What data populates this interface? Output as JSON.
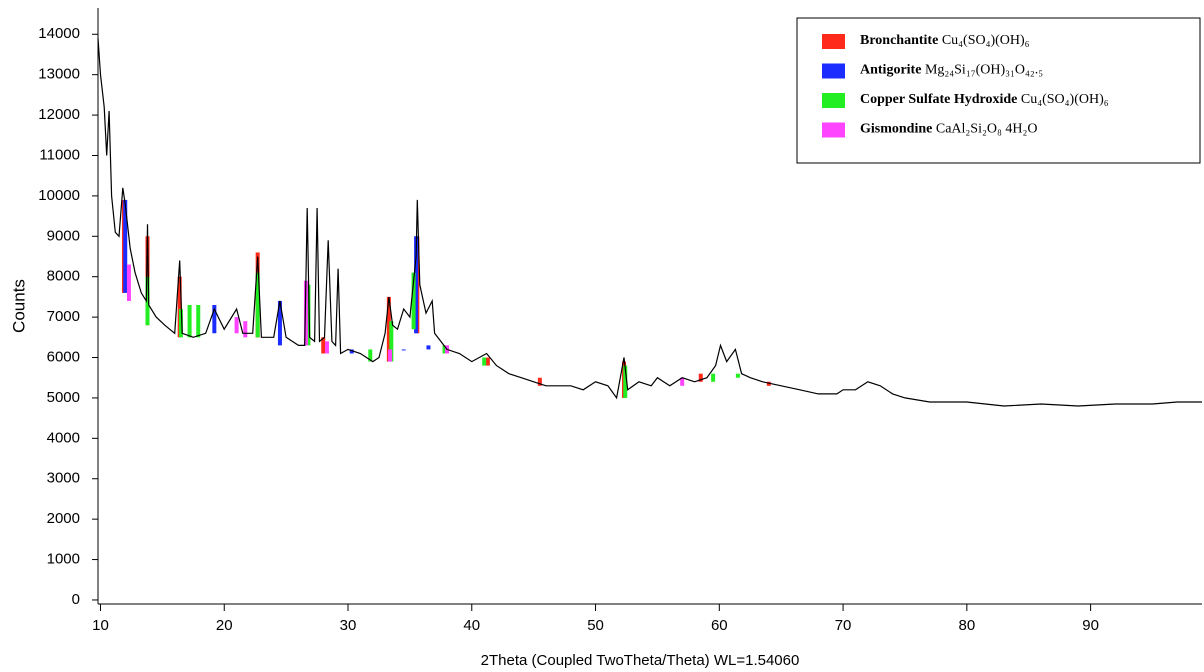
{
  "chart_data": {
    "type": "line",
    "x_label": "2Theta (Coupled TwoTheta/Theta) WL=1.54060",
    "y_label": "Counts",
    "xlim": [
      9.8,
      99
    ],
    "ylim": [
      -100,
      14650
    ],
    "xticks": [
      10,
      20,
      30,
      40,
      50,
      60,
      70,
      80,
      90
    ],
    "yticks": [
      0,
      1000,
      2000,
      3000,
      4000,
      5000,
      6000,
      7000,
      8000,
      9000,
      10000,
      11000,
      12000,
      13000,
      14000
    ],
    "color": "#000000",
    "x": [
      9.8,
      10.0,
      10.3,
      10.5,
      10.7,
      10.9,
      11.2,
      11.5,
      11.8,
      12.0,
      12.4,
      12.8,
      13.3,
      13.7,
      13.8,
      13.9,
      14.5,
      15.2,
      16.0,
      16.4,
      16.6,
      17.5,
      18.5,
      19.2,
      20.0,
      21.0,
      21.5,
      22.3,
      22.7,
      23.0,
      24.0,
      24.5,
      25.0,
      26.0,
      26.5,
      26.7,
      26.9,
      27.3,
      27.5,
      27.7,
      28.1,
      28.4,
      28.7,
      29.0,
      29.2,
      29.4,
      30.0,
      31.0,
      32.0,
      32.5,
      33.0,
      33.3,
      33.6,
      34.0,
      34.5,
      35.0,
      35.5,
      35.6,
      35.8,
      36.3,
      36.8,
      37.0,
      38.0,
      39.0,
      40.0,
      41.2,
      42.0,
      43.0,
      44.0,
      45.0,
      46.0,
      47.0,
      48.0,
      49.0,
      50.0,
      51.0,
      51.7,
      52.3,
      52.6,
      53.5,
      54.5,
      55.0,
      56.0,
      57.0,
      58.0,
      59.0,
      59.7,
      60.1,
      60.6,
      61.3,
      61.8,
      62.5,
      63.5,
      65.0,
      66.5,
      68.0,
      69.5,
      70.0,
      71.0,
      72.0,
      73.0,
      74.0,
      75.0,
      77.0,
      80.0,
      83.0,
      86.0,
      89.0,
      92.0,
      95.0,
      97.0,
      99.0
    ],
    "values": [
      13900,
      13000,
      12200,
      11000,
      12100,
      10000,
      9100,
      9000,
      10200,
      9800,
      8700,
      8100,
      7600,
      7400,
      9300,
      7300,
      7000,
      6800,
      6600,
      8400,
      6600,
      6500,
      6600,
      7200,
      6700,
      7200,
      6600,
      6600,
      8500,
      6500,
      6500,
      7400,
      6500,
      6300,
      6300,
      9700,
      6500,
      6400,
      9700,
      6400,
      6500,
      8900,
      6400,
      6300,
      8200,
      6100,
      6200,
      6100,
      5900,
      6000,
      6600,
      7500,
      6800,
      6700,
      7200,
      7000,
      8500,
      9900,
      7800,
      7100,
      7400,
      6600,
      6200,
      6100,
      5900,
      6100,
      5800,
      5600,
      5500,
      5400,
      5300,
      5300,
      5300,
      5200,
      5400,
      5300,
      5000,
      6000,
      5200,
      5400,
      5300,
      5500,
      5300,
      5500,
      5400,
      5500,
      5800,
      6300,
      5900,
      6200,
      5600,
      5500,
      5400,
      5300,
      5200,
      5100,
      5100,
      5200,
      5200,
      5400,
      5300,
      5100,
      5000,
      4900,
      4900,
      4800,
      4850,
      4800,
      4850,
      4850,
      4900,
      4900
    ],
    "phases": [
      {
        "name": "Bronchantite",
        "formula": "Cu₄(SO₄)(OH)₆",
        "color": "#ff2a1a",
        "x": [
          11.9,
          13.8,
          16.4,
          22.7,
          28.0,
          33.3,
          35.6,
          52.3,
          41.3,
          45.5,
          58.5,
          64.0
        ],
        "values": [
          9900,
          9000,
          8000,
          8600,
          6500,
          7500,
          9000,
          5900,
          6000,
          5500,
          5600,
          5400
        ]
      },
      {
        "name": "Antigorite",
        "formula": "Mg₂₄Si₁₇(OH)₃₁O₄₂.₅",
        "color": "#1a2cff",
        "x": [
          12.0,
          19.2,
          24.5,
          35.5,
          30.3,
          34.5,
          36.5
        ],
        "values": [
          9900,
          7300,
          7400,
          9000,
          6200,
          6200,
          6300
        ]
      },
      {
        "name": "Copper Sulfate Hydroxide",
        "formula": "Cu₄(SO₄)(OH)₆",
        "color": "#22ee22",
        "x": [
          13.8,
          16.5,
          17.2,
          17.9,
          22.7,
          26.8,
          31.8,
          33.5,
          35.3,
          37.8,
          41.0,
          52.4,
          59.5,
          61.5
        ],
        "values": [
          8000,
          7200,
          7300,
          7300,
          8100,
          7800,
          6200,
          6900,
          8100,
          6300,
          6000,
          5800,
          5600,
          5600
        ]
      },
      {
        "name": "Gismondine",
        "formula": "CaAl₂Si₂O₈ 4H₂O",
        "color": "#ff44ff",
        "x": [
          12.3,
          21.0,
          26.6,
          28.3,
          33.4,
          21.7,
          38.0,
          57.0
        ],
        "values": [
          8300,
          7000,
          7900,
          6400,
          6200,
          6900,
          6300,
          5500
        ]
      }
    ]
  }
}
